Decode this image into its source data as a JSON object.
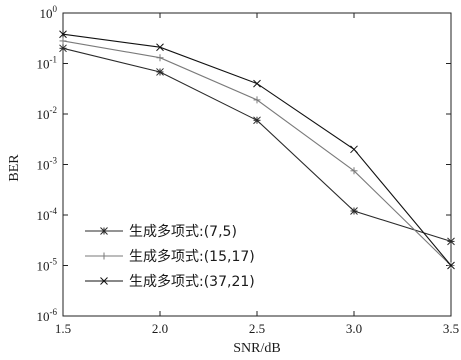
{
  "chart_data": {
    "type": "line",
    "title": "",
    "xlabel": "SNR/dB",
    "ylabel": "BER",
    "yscale": "log",
    "xlim": [
      1.5,
      3.5
    ],
    "ylim": [
      1e-06,
      1
    ],
    "grid": false,
    "legend_position": "bottom-left",
    "x": [
      1.5,
      2.0,
      2.5,
      3.0,
      3.5
    ],
    "x_tick_labels": [
      "1.5",
      "2.0",
      "2.5",
      "3.0",
      "3.5"
    ],
    "y_ticks": [
      {
        "value": 1,
        "base": "10",
        "exp": "0"
      },
      {
        "value": 0.1,
        "base": "10",
        "exp": "-1"
      },
      {
        "value": 0.01,
        "base": "10",
        "exp": "-2"
      },
      {
        "value": 0.001,
        "base": "10",
        "exp": "-3"
      },
      {
        "value": 0.0001,
        "base": "10",
        "exp": "-4"
      },
      {
        "value": 1e-05,
        "base": "10",
        "exp": "-5"
      },
      {
        "value": 1e-06,
        "base": "10",
        "exp": "-6"
      }
    ],
    "series": [
      {
        "name": "生成多项式:(7,5)",
        "marker": "star",
        "color": "#2a2a2a",
        "values": [
          0.2,
          0.068,
          0.0075,
          0.00012,
          3e-05
        ]
      },
      {
        "name": "生成多项式:(15,17)",
        "marker": "plus",
        "color": "#7a7a7a",
        "values": [
          0.28,
          0.13,
          0.019,
          0.00075,
          1e-05
        ]
      },
      {
        "name": "生成多项式:(37,21)",
        "marker": "x",
        "color": "#111111",
        "values": [
          0.38,
          0.21,
          0.04,
          0.002,
          1e-05
        ]
      }
    ]
  }
}
